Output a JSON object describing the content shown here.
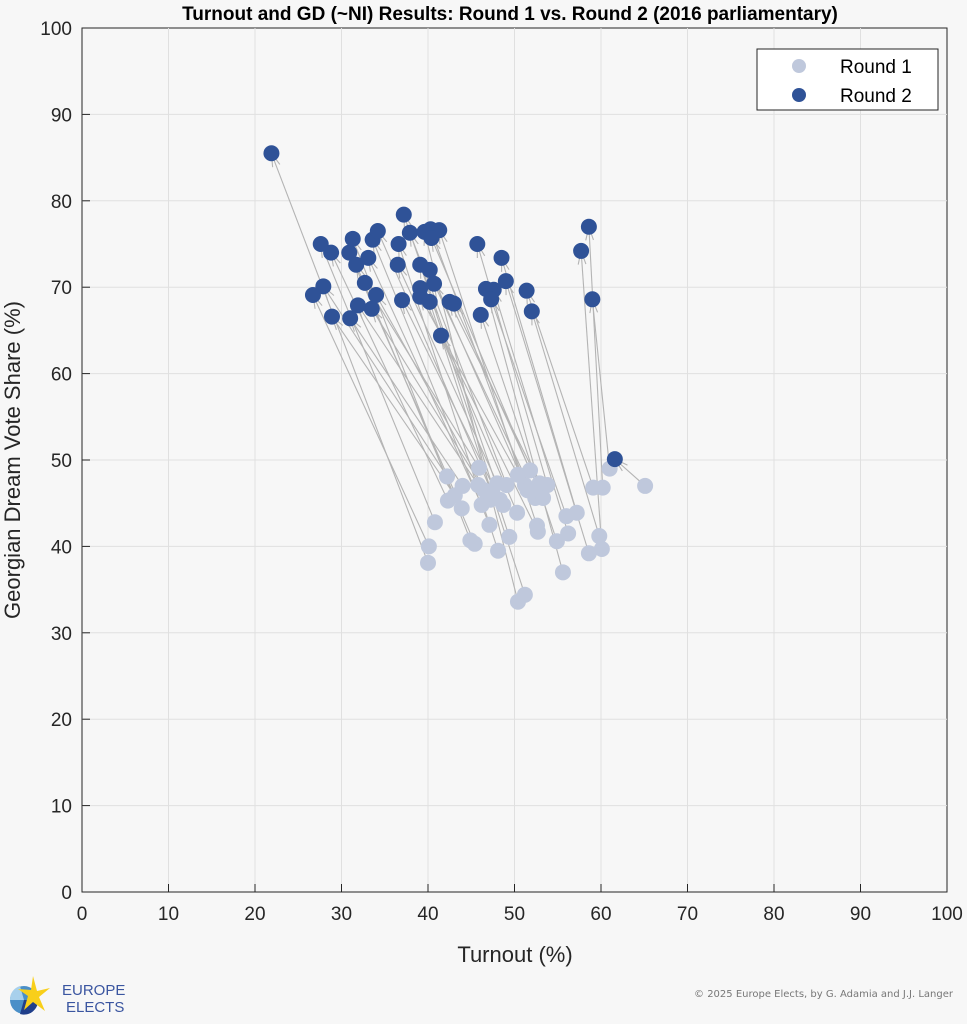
{
  "chart_data": {
    "type": "scatter",
    "title": "Turnout and GD (~NI) Results: Round 1 vs. Round 2 (2016 parliamentary)",
    "xlabel": "Turnout (%)",
    "ylabel": "Georgian Dream Vote Share (%)",
    "xlim": [
      0,
      100
    ],
    "ylim": [
      0,
      100
    ],
    "xticks": [
      "0",
      "10",
      "20",
      "30",
      "40",
      "50",
      "60",
      "70",
      "80",
      "90",
      "100"
    ],
    "yticks": [
      "0",
      "10",
      "20",
      "30",
      "40",
      "50",
      "60",
      "70",
      "80",
      "90",
      "100"
    ],
    "grid": true,
    "legend_position": "top-right",
    "series": [
      {
        "name": "Round 1",
        "color": "#bfc8dc",
        "points": [
          [
            42.2,
            48.1
          ],
          [
            45.9,
            49.1
          ],
          [
            43.1,
            45.9
          ],
          [
            42.3,
            45.3
          ],
          [
            43.9,
            44.4
          ],
          [
            40.8,
            42.8
          ],
          [
            40.1,
            40.0
          ],
          [
            40.0,
            38.1
          ],
          [
            45.8,
            47.1
          ],
          [
            46.2,
            44.8
          ],
          [
            48.0,
            47.3
          ],
          [
            49.1,
            47.1
          ],
          [
            48.3,
            45.4
          ],
          [
            47.2,
            45.4
          ],
          [
            48.7,
            44.8
          ],
          [
            47.1,
            42.5
          ],
          [
            50.3,
            43.9
          ],
          [
            44.9,
            40.7
          ],
          [
            45.4,
            40.3
          ],
          [
            48.1,
            39.5
          ],
          [
            49.4,
            41.1
          ],
          [
            50.4,
            48.3
          ],
          [
            51.8,
            48.8
          ],
          [
            51.2,
            47.1
          ],
          [
            52.9,
            47.3
          ],
          [
            53.8,
            47.1
          ],
          [
            52.4,
            45.6
          ],
          [
            53.3,
            45.6
          ],
          [
            52.6,
            42.4
          ],
          [
            52.7,
            41.7
          ],
          [
            56.0,
            43.5
          ],
          [
            57.2,
            43.9
          ],
          [
            56.2,
            41.5
          ],
          [
            54.9,
            40.6
          ],
          [
            55.6,
            37.0
          ],
          [
            50.4,
            33.6
          ],
          [
            51.2,
            34.4
          ],
          [
            59.1,
            46.8
          ],
          [
            60.2,
            46.8
          ],
          [
            61.0,
            49.0
          ],
          [
            65.1,
            47.0
          ],
          [
            59.8,
            41.2
          ],
          [
            60.1,
            39.7
          ],
          [
            58.6,
            39.2
          ],
          [
            47.5,
            46.0
          ],
          [
            44.0,
            47.0
          ],
          [
            51.5,
            46.5
          ],
          [
            46.5,
            46.5
          ]
        ]
      },
      {
        "name": "Round 2",
        "color": "#2f5297",
        "points": [
          [
            21.9,
            85.5
          ],
          [
            27.6,
            75.0
          ],
          [
            28.8,
            74.0
          ],
          [
            27.9,
            70.1
          ],
          [
            26.7,
            69.1
          ],
          [
            28.9,
            66.6
          ],
          [
            30.9,
            74.0
          ],
          [
            31.3,
            75.6
          ],
          [
            31.7,
            72.6
          ],
          [
            33.1,
            73.4
          ],
          [
            33.6,
            75.5
          ],
          [
            34.2,
            76.5
          ],
          [
            32.7,
            70.5
          ],
          [
            34.0,
            69.1
          ],
          [
            31.0,
            66.4
          ],
          [
            31.9,
            67.9
          ],
          [
            33.5,
            67.5
          ],
          [
            37.2,
            78.4
          ],
          [
            36.6,
            75.0
          ],
          [
            37.9,
            76.3
          ],
          [
            36.5,
            72.6
          ],
          [
            37.0,
            68.5
          ],
          [
            39.1,
            72.6
          ],
          [
            40.2,
            72.0
          ],
          [
            39.6,
            76.4
          ],
          [
            40.3,
            76.7
          ],
          [
            41.3,
            76.6
          ],
          [
            40.4,
            75.7
          ],
          [
            39.1,
            69.9
          ],
          [
            40.7,
            70.4
          ],
          [
            39.1,
            68.9
          ],
          [
            40.2,
            68.3
          ],
          [
            42.5,
            68.3
          ],
          [
            43.0,
            68.1
          ],
          [
            41.5,
            64.4
          ],
          [
            45.7,
            75.0
          ],
          [
            48.5,
            73.4
          ],
          [
            46.7,
            69.8
          ],
          [
            47.6,
            69.7
          ],
          [
            49.0,
            70.7
          ],
          [
            47.3,
            68.6
          ],
          [
            46.1,
            66.8
          ],
          [
            51.4,
            69.6
          ],
          [
            52.0,
            67.2
          ],
          [
            58.6,
            77.0
          ],
          [
            57.7,
            74.2
          ],
          [
            59.0,
            68.6
          ],
          [
            61.6,
            50.1
          ]
        ]
      }
    ]
  },
  "footer": {
    "logo_text_1": "EUROPE",
    "logo_text_2": "ELECTS",
    "credit": "© 2025 Europe Elects, by G. Adamia and J.J. Langer"
  }
}
